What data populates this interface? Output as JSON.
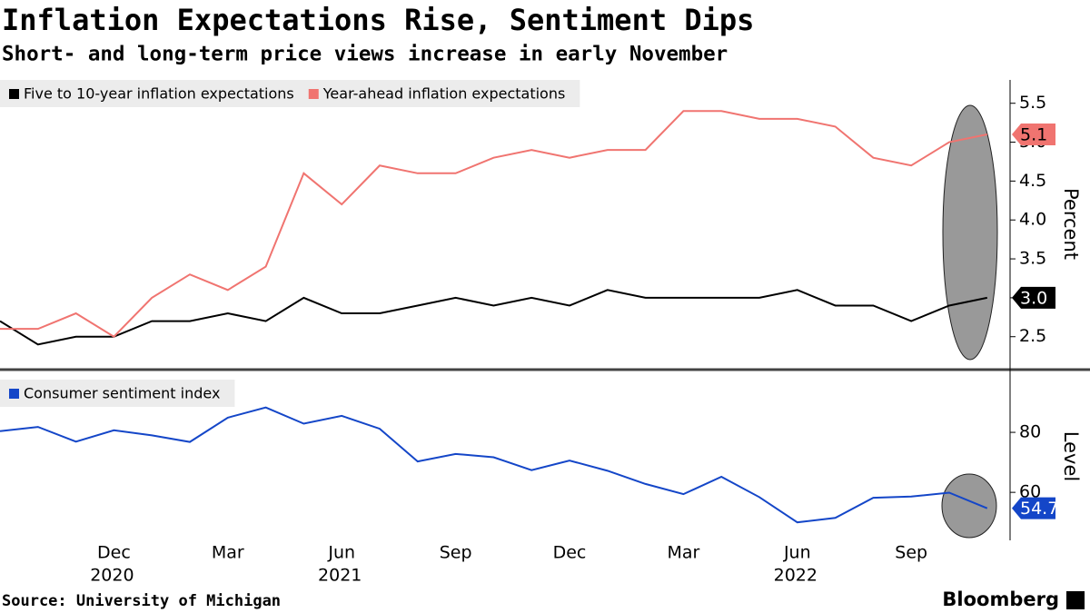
{
  "title": "Inflation Expectations Rise, Sentiment Dips",
  "subtitle": "Short- and long-term price views increase in early November",
  "source": "Source: University of Michigan",
  "brand": "Bloomberg",
  "chart_data": [
    {
      "type": "line",
      "y_label": "Percent",
      "ylim": [
        2.1,
        5.8
      ],
      "yticks": [
        2.5,
        {
          "value": 3,
          "label": "3.0"
        },
        3.5,
        {
          "value": 4,
          "label": "4.0"
        },
        4.5,
        {
          "value": 5,
          "label": "5.0"
        },
        5.5
      ],
      "series": [
        {
          "name": "Five to 10-year inflation expectations",
          "color": "#000000",
          "end_label": "3.0",
          "label_text_color": "#ffffff",
          "values": [
            2.7,
            2.4,
            2.5,
            2.5,
            2.7,
            2.7,
            2.8,
            2.7,
            3.0,
            2.8,
            2.8,
            2.9,
            3.0,
            2.9,
            3.0,
            2.9,
            3.1,
            3.0,
            3.0,
            3.0,
            3.0,
            3.1,
            2.9,
            2.9,
            2.7,
            2.9,
            3.0
          ]
        },
        {
          "name": "Year-ahead inflation expectations",
          "color": "#f07470",
          "end_label": "5.1",
          "label_text_color": "#000000",
          "values": [
            2.6,
            2.6,
            2.8,
            2.5,
            3.0,
            3.3,
            3.1,
            3.4,
            4.6,
            4.2,
            4.7,
            4.6,
            4.6,
            4.8,
            4.9,
            4.8,
            4.9,
            4.9,
            5.4,
            5.4,
            5.3,
            5.3,
            5.2,
            4.8,
            4.7,
            5.0,
            5.1
          ]
        }
      ]
    },
    {
      "type": "line",
      "y_label": "Level",
      "ylim": [
        44,
        100
      ],
      "yticks": [
        60,
        80
      ],
      "categories": [
        null,
        null,
        null,
        "Dec",
        null,
        null,
        "Mar",
        null,
        null,
        "Jun",
        null,
        null,
        "Sep",
        null,
        null,
        "Dec",
        null,
        null,
        "Mar",
        null,
        null,
        "Jun",
        null,
        null,
        "Sep",
        null,
        null
      ],
      "year_labels": [
        {
          "text": "2020",
          "category": 3
        },
        {
          "text": "2021",
          "category": 9
        },
        {
          "text": "2022",
          "category": 21
        }
      ],
      "series": [
        {
          "name": "Consumer sentiment index",
          "color": "#1446c8",
          "end_label": "54.7",
          "label_text_color": "#ffffff",
          "values": [
            80.4,
            81.8,
            76.9,
            80.7,
            79.0,
            76.8,
            84.9,
            88.3,
            82.9,
            85.5,
            81.2,
            70.3,
            72.8,
            71.7,
            67.4,
            70.6,
            67.2,
            62.8,
            59.4,
            65.2,
            58.4,
            50.0,
            51.5,
            58.2,
            58.6,
            59.9,
            54.7
          ]
        }
      ]
    }
  ]
}
